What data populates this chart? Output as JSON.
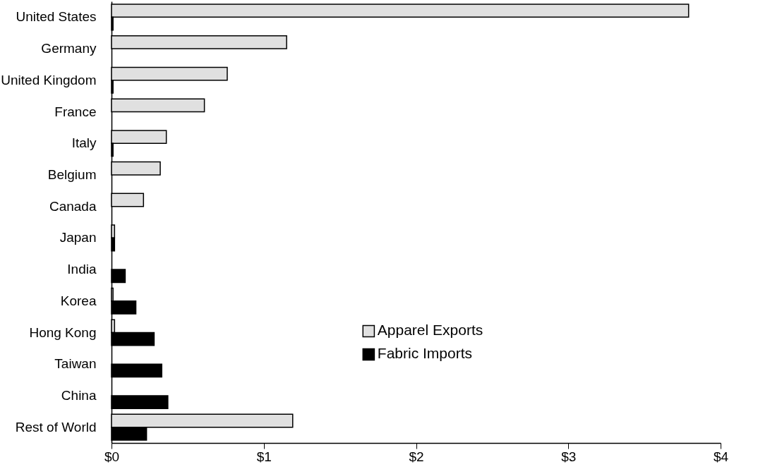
{
  "chart_data": {
    "type": "bar",
    "orientation": "horizontal",
    "categories": [
      "United States",
      "Germany",
      "United Kingdom",
      "France",
      "Italy",
      "Belgium",
      "Canada",
      "Japan",
      "India",
      "Korea",
      "Hong Kong",
      "Taiwan",
      "China",
      "Rest of World"
    ],
    "series": [
      {
        "name": "Apparel Exports",
        "color": "#e0e0e0",
        "values": [
          3.79,
          1.15,
          0.76,
          0.61,
          0.36,
          0.32,
          0.21,
          0.02,
          0,
          0.01,
          0.02,
          0,
          0,
          1.19
        ]
      },
      {
        "name": "Fabric Imports",
        "color": "#000000",
        "values": [
          0.01,
          0,
          0.01,
          0,
          0.01,
          0,
          0,
          0.02,
          0.09,
          0.16,
          0.28,
          0.33,
          0.37,
          0.23
        ]
      }
    ],
    "xlim": [
      0,
      4
    ],
    "xticks": [
      {
        "value": 0,
        "label": "$0"
      },
      {
        "value": 1,
        "label": "$1"
      },
      {
        "value": 2,
        "label": "$2"
      },
      {
        "value": 3,
        "label": "$3"
      },
      {
        "value": 4,
        "label": "$4"
      }
    ],
    "grid": false,
    "legend": "right"
  }
}
